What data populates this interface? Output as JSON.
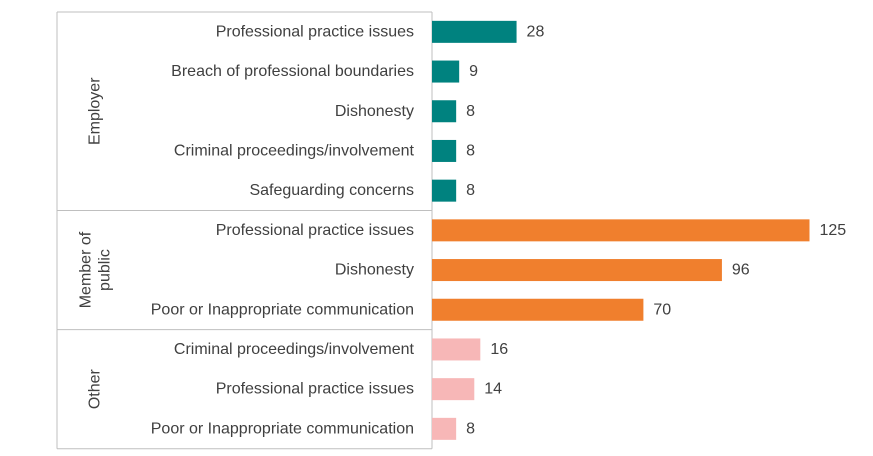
{
  "chart_data": {
    "type": "bar",
    "orientation": "horizontal",
    "groups": [
      {
        "name": "Employer",
        "color": "#00827F",
        "items": [
          {
            "label": "Professional practice issues",
            "value": 28
          },
          {
            "label": "Breach of professional boundaries",
            "value": 9
          },
          {
            "label": "Dishonesty",
            "value": 8
          },
          {
            "label": "Criminal proceedings/involvement",
            "value": 8
          },
          {
            "label": "Safeguarding concerns",
            "value": 8
          }
        ]
      },
      {
        "name": "Member of public",
        "name_lines": [
          "Member of",
          "public"
        ],
        "color": "#F07F2D",
        "items": [
          {
            "label": "Professional practice issues",
            "value": 125
          },
          {
            "label": "Dishonesty",
            "value": 96
          },
          {
            "label": "Poor or Inappropriate communication",
            "value": 70
          }
        ]
      },
      {
        "name": "Other",
        "color": "#F7B7B7",
        "items": [
          {
            "label": "Criminal proceedings/involvement",
            "value": 16
          },
          {
            "label": "Professional practice issues",
            "value": 14
          },
          {
            "label": "Poor or Inappropriate communication",
            "value": 8
          }
        ]
      }
    ],
    "xlim": [
      0,
      135
    ],
    "grid": false,
    "legend": "none"
  }
}
